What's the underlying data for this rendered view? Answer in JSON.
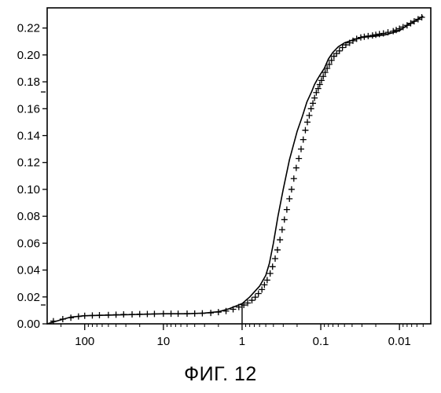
{
  "caption": "ФИГ. 12",
  "chart_data": {
    "type": "line",
    "title": "",
    "xlabel": "",
    "ylabel": "",
    "x_scale": "log",
    "x_reversed": true,
    "xlim": [
      300,
      0.004
    ],
    "ylim": [
      0.0,
      0.235
    ],
    "x_ticks": [
      100,
      10,
      1,
      0.1,
      0.01
    ],
    "x_tick_labels": [
      "100",
      "10",
      "1",
      "0.1",
      "0.01"
    ],
    "y_ticks": [
      0.0,
      0.02,
      0.04,
      0.06,
      0.08,
      0.1,
      0.12,
      0.14,
      0.16,
      0.18,
      0.2,
      0.22
    ],
    "y_tick_labels": [
      "0.00",
      "0.02",
      "0.04",
      "0.06",
      "0.08",
      "0.10",
      "0.12",
      "0.14",
      "0.16",
      "0.18",
      "0.20",
      "0.22"
    ],
    "grid": false,
    "line_color": "#000000",
    "curve": {
      "x": [
        300,
        200,
        150,
        100,
        50,
        20,
        10,
        5,
        3,
        2,
        1.5,
        1.0,
        0.8,
        0.6,
        0.5,
        0.45,
        0.4,
        0.35,
        0.3,
        0.25,
        0.2,
        0.17,
        0.15,
        0.13,
        0.12,
        0.11,
        0.1,
        0.09,
        0.08,
        0.07,
        0.06,
        0.05,
        0.04,
        0.03,
        0.02,
        0.015,
        0.01,
        0.008,
        0.006,
        0.005
      ],
      "y": [
        0.0,
        0.003,
        0.005,
        0.006,
        0.0065,
        0.007,
        0.0075,
        0.0075,
        0.008,
        0.009,
        0.011,
        0.015,
        0.02,
        0.028,
        0.036,
        0.045,
        0.06,
        0.08,
        0.1,
        0.122,
        0.143,
        0.155,
        0.165,
        0.173,
        0.178,
        0.182,
        0.186,
        0.19,
        0.197,
        0.202,
        0.206,
        0.209,
        0.211,
        0.213,
        0.214,
        0.215,
        0.218,
        0.222,
        0.226,
        0.229
      ]
    },
    "markers": {
      "symbol": "+",
      "x": [
        250,
        190,
        150,
        120,
        100,
        80,
        65,
        50,
        40,
        32,
        25,
        20,
        16,
        13,
        10,
        8,
        6.5,
        5,
        4,
        3.2,
        2.5,
        2,
        1.6,
        1.3,
        1.1,
        0.95,
        0.85,
        0.75,
        0.68,
        0.62,
        0.56,
        0.52,
        0.48,
        0.44,
        0.41,
        0.38,
        0.355,
        0.33,
        0.31,
        0.29,
        0.27,
        0.25,
        0.235,
        0.22,
        0.205,
        0.19,
        0.178,
        0.167,
        0.157,
        0.148,
        0.14,
        0.133,
        0.126,
        0.12,
        0.114,
        0.108,
        0.103,
        0.098,
        0.093,
        0.088,
        0.083,
        0.078,
        0.073,
        0.068,
        0.063,
        0.058,
        0.053,
        0.048,
        0.043,
        0.039,
        0.035,
        0.031,
        0.028,
        0.025,
        0.022,
        0.02,
        0.018,
        0.016,
        0.014,
        0.012,
        0.011,
        0.01,
        0.009,
        0.008,
        0.0072,
        0.0065,
        0.0058,
        0.0052
      ],
      "y": [
        0.002,
        0.0035,
        0.0045,
        0.0055,
        0.006,
        0.0062,
        0.0064,
        0.0066,
        0.0068,
        0.007,
        0.007,
        0.0072,
        0.0073,
        0.0074,
        0.0075,
        0.0075,
        0.0075,
        0.0076,
        0.0077,
        0.0078,
        0.0081,
        0.0087,
        0.0095,
        0.0108,
        0.0125,
        0.014,
        0.0155,
        0.0175,
        0.0198,
        0.0225,
        0.0255,
        0.029,
        0.0325,
        0.0375,
        0.0425,
        0.0485,
        0.055,
        0.0625,
        0.07,
        0.0775,
        0.085,
        0.093,
        0.1,
        0.108,
        0.116,
        0.123,
        0.13,
        0.137,
        0.144,
        0.15,
        0.155,
        0.16,
        0.164,
        0.168,
        0.172,
        0.175,
        0.178,
        0.181,
        0.184,
        0.187,
        0.19,
        0.193,
        0.196,
        0.199,
        0.201,
        0.203,
        0.2055,
        0.2075,
        0.209,
        0.2105,
        0.212,
        0.213,
        0.2135,
        0.214,
        0.2145,
        0.215,
        0.2155,
        0.216,
        0.2168,
        0.2177,
        0.2185,
        0.2195,
        0.2207,
        0.222,
        0.2235,
        0.225,
        0.2265,
        0.228
      ]
    },
    "reference_markers": {
      "x": [
        1.0
      ],
      "y": [
        0.015
      ]
    }
  }
}
